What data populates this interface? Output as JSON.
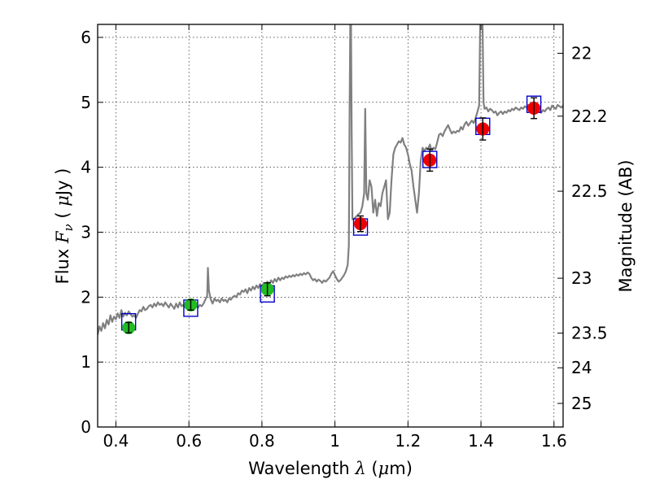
{
  "chart_data": {
    "type": "scatter",
    "xlabel_text": "Wavelength",
    "xlabel_symbol": "λ",
    "xlabel_unit_open": "(",
    "xlabel_unit_mu": "μ",
    "xlabel_unit_rest": "m)",
    "ylabel_text": "Flux",
    "ylabel_symbol": "F",
    "ylabel_subscript": "ν",
    "ylabel_unit_open": "(",
    "ylabel_unit_mu": "μ",
    "ylabel_unit_rest": "Jy )",
    "y2label": "Magnitude (AB)",
    "xlim": [
      0.35,
      1.625
    ],
    "ylim": [
      0,
      6.2
    ],
    "grid": true,
    "x_ticks": [
      0.4,
      0.6,
      0.8,
      1.0,
      1.2,
      1.4,
      1.6
    ],
    "x_tick_labels": [
      "0.4",
      "0.6",
      "0.8",
      "1",
      "1.2",
      "1.4",
      "1.6"
    ],
    "y_ticks": [
      0,
      1,
      2,
      3,
      4,
      5,
      6
    ],
    "y_tick_labels": [
      "0",
      "1",
      "2",
      "3",
      "4",
      "5",
      "6"
    ],
    "mag_ticks": [
      22,
      22.2,
      22.5,
      23,
      23.5,
      24,
      25
    ],
    "mag_tick_labels": [
      "22",
      "22.2",
      "22.5",
      "23",
      "23.5",
      "24",
      "25"
    ],
    "colors": {
      "spectrum": "#808080",
      "model_box": "#0000cc",
      "optical_points": "#22bb22",
      "nir_points": "#ee0000",
      "error_bar": "#000000"
    },
    "model_photometry": [
      {
        "x": 0.435,
        "y": 1.62
      },
      {
        "x": 0.605,
        "y": 1.83
      },
      {
        "x": 0.815,
        "y": 2.05
      },
      {
        "x": 1.07,
        "y": 3.08
      },
      {
        "x": 1.26,
        "y": 4.12
      },
      {
        "x": 1.405,
        "y": 4.63
      },
      {
        "x": 1.545,
        "y": 4.97
      }
    ],
    "observed_optical": [
      {
        "x": 0.435,
        "y": 1.53,
        "err": 0.08
      },
      {
        "x": 0.605,
        "y": 1.88,
        "err": 0.08
      },
      {
        "x": 0.815,
        "y": 2.12,
        "err": 0.1
      }
    ],
    "observed_nir": [
      {
        "x": 1.07,
        "y": 3.13,
        "err": 0.12
      },
      {
        "x": 1.26,
        "y": 4.11,
        "err": 0.17
      },
      {
        "x": 1.405,
        "y": 4.59,
        "err": 0.17
      },
      {
        "x": 1.545,
        "y": 4.91,
        "err": 0.16
      }
    ],
    "spectrum": [
      [
        0.35,
        1.42
      ],
      [
        0.355,
        1.55
      ],
      [
        0.36,
        1.48
      ],
      [
        0.365,
        1.6
      ],
      [
        0.37,
        1.52
      ],
      [
        0.375,
        1.65
      ],
      [
        0.38,
        1.58
      ],
      [
        0.385,
        1.72
      ],
      [
        0.39,
        1.62
      ],
      [
        0.395,
        1.7
      ],
      [
        0.4,
        1.66
      ],
      [
        0.405,
        1.75
      ],
      [
        0.41,
        1.68
      ],
      [
        0.415,
        1.8
      ],
      [
        0.42,
        1.7
      ],
      [
        0.425,
        1.76
      ],
      [
        0.43,
        1.72
      ],
      [
        0.435,
        1.78
      ],
      [
        0.44,
        1.74
      ],
      [
        0.445,
        1.7
      ],
      [
        0.45,
        1.72
      ],
      [
        0.455,
        1.68
      ],
      [
        0.46,
        1.74
      ],
      [
        0.465,
        1.8
      ],
      [
        0.47,
        1.78
      ],
      [
        0.475,
        1.85
      ],
      [
        0.48,
        1.8
      ],
      [
        0.485,
        1.82
      ],
      [
        0.49,
        1.86
      ],
      [
        0.495,
        1.88
      ],
      [
        0.5,
        1.84
      ],
      [
        0.505,
        1.9
      ],
      [
        0.51,
        1.86
      ],
      [
        0.515,
        1.92
      ],
      [
        0.52,
        1.88
      ],
      [
        0.525,
        1.9
      ],
      [
        0.53,
        1.86
      ],
      [
        0.535,
        1.92
      ],
      [
        0.54,
        1.88
      ],
      [
        0.545,
        1.84
      ],
      [
        0.55,
        1.9
      ],
      [
        0.555,
        1.86
      ],
      [
        0.56,
        1.82
      ],
      [
        0.565,
        1.9
      ],
      [
        0.57,
        1.84
      ],
      [
        0.575,
        1.92
      ],
      [
        0.58,
        1.86
      ],
      [
        0.585,
        1.88
      ],
      [
        0.59,
        1.84
      ],
      [
        0.595,
        1.9
      ],
      [
        0.6,
        1.86
      ],
      [
        0.605,
        1.88
      ],
      [
        0.61,
        1.84
      ],
      [
        0.615,
        1.9
      ],
      [
        0.62,
        1.86
      ],
      [
        0.625,
        1.84
      ],
      [
        0.63,
        1.88
      ],
      [
        0.635,
        1.86
      ],
      [
        0.64,
        1.9
      ],
      [
        0.645,
        1.96
      ],
      [
        0.65,
        2.02
      ],
      [
        0.652,
        2.45
      ],
      [
        0.655,
        2.1
      ],
      [
        0.66,
        1.96
      ],
      [
        0.665,
        1.9
      ],
      [
        0.67,
        1.98
      ],
      [
        0.675,
        1.94
      ],
      [
        0.68,
        1.96
      ],
      [
        0.685,
        1.92
      ],
      [
        0.69,
        1.98
      ],
      [
        0.695,
        1.94
      ],
      [
        0.7,
        1.96
      ],
      [
        0.705,
        1.92
      ],
      [
        0.71,
        1.98
      ],
      [
        0.715,
        1.96
      ],
      [
        0.72,
        2.0
      ],
      [
        0.725,
        2.02
      ],
      [
        0.73,
        2.0
      ],
      [
        0.735,
        2.06
      ],
      [
        0.74,
        2.04
      ],
      [
        0.745,
        2.1
      ],
      [
        0.75,
        2.08
      ],
      [
        0.755,
        2.12
      ],
      [
        0.76,
        2.06
      ],
      [
        0.765,
        2.14
      ],
      [
        0.77,
        2.1
      ],
      [
        0.775,
        2.16
      ],
      [
        0.78,
        2.12
      ],
      [
        0.785,
        2.18
      ],
      [
        0.79,
        2.14
      ],
      [
        0.795,
        2.2
      ],
      [
        0.8,
        2.16
      ],
      [
        0.805,
        2.22
      ],
      [
        0.81,
        2.18
      ],
      [
        0.815,
        2.24
      ],
      [
        0.82,
        2.2
      ],
      [
        0.825,
        2.26
      ],
      [
        0.83,
        2.22
      ],
      [
        0.835,
        2.28
      ],
      [
        0.84,
        2.24
      ],
      [
        0.845,
        2.3
      ],
      [
        0.85,
        2.26
      ],
      [
        0.855,
        2.3
      ],
      [
        0.86,
        2.28
      ],
      [
        0.865,
        2.32
      ],
      [
        0.87,
        2.3
      ],
      [
        0.875,
        2.33
      ],
      [
        0.88,
        2.31
      ],
      [
        0.885,
        2.34
      ],
      [
        0.89,
        2.32
      ],
      [
        0.895,
        2.35
      ],
      [
        0.9,
        2.33
      ],
      [
        0.905,
        2.36
      ],
      [
        0.91,
        2.34
      ],
      [
        0.915,
        2.37
      ],
      [
        0.92,
        2.35
      ],
      [
        0.925,
        2.38
      ],
      [
        0.93,
        2.36
      ],
      [
        0.935,
        2.3
      ],
      [
        0.94,
        2.26
      ],
      [
        0.945,
        2.28
      ],
      [
        0.95,
        2.24
      ],
      [
        0.955,
        2.27
      ],
      [
        0.96,
        2.25
      ],
      [
        0.965,
        2.22
      ],
      [
        0.97,
        2.26
      ],
      [
        0.975,
        2.24
      ],
      [
        0.98,
        2.27
      ],
      [
        0.985,
        2.3
      ],
      [
        0.99,
        2.36
      ],
      [
        0.995,
        2.4
      ],
      [
        1.0,
        2.34
      ],
      [
        1.005,
        2.28
      ],
      [
        1.01,
        2.24
      ],
      [
        1.015,
        2.26
      ],
      [
        1.02,
        2.3
      ],
      [
        1.025,
        2.34
      ],
      [
        1.03,
        2.4
      ],
      [
        1.035,
        2.5
      ],
      [
        1.038,
        2.8
      ],
      [
        1.04,
        4.8
      ],
      [
        1.042,
        6.3
      ],
      [
        1.044,
        6.3
      ],
      [
        1.046,
        4.5
      ],
      [
        1.048,
        3.2
      ],
      [
        1.05,
        3.2
      ],
      [
        1.055,
        3.22
      ],
      [
        1.06,
        3.25
      ],
      [
        1.065,
        3.28
      ],
      [
        1.07,
        3.3
      ],
      [
        1.075,
        3.4
      ],
      [
        1.08,
        3.6
      ],
      [
        1.083,
        4.9
      ],
      [
        1.086,
        3.6
      ],
      [
        1.09,
        3.5
      ],
      [
        1.095,
        3.8
      ],
      [
        1.1,
        3.7
      ],
      [
        1.105,
        3.3
      ],
      [
        1.11,
        3.5
      ],
      [
        1.115,
        3.25
      ],
      [
        1.12,
        3.45
      ],
      [
        1.125,
        3.4
      ],
      [
        1.13,
        3.6
      ],
      [
        1.135,
        3.7
      ],
      [
        1.14,
        3.8
      ],
      [
        1.145,
        3.2
      ],
      [
        1.15,
        3.3
      ],
      [
        1.155,
        3.8
      ],
      [
        1.16,
        4.2
      ],
      [
        1.165,
        4.3
      ],
      [
        1.17,
        4.35
      ],
      [
        1.175,
        4.4
      ],
      [
        1.18,
        4.38
      ],
      [
        1.185,
        4.45
      ],
      [
        1.19,
        4.35
      ],
      [
        1.195,
        4.3
      ],
      [
        1.2,
        4.2
      ],
      [
        1.205,
        4.05
      ],
      [
        1.21,
        3.95
      ],
      [
        1.215,
        3.7
      ],
      [
        1.22,
        3.5
      ],
      [
        1.225,
        3.3
      ],
      [
        1.23,
        3.6
      ],
      [
        1.235,
        4.1
      ],
      [
        1.24,
        4.3
      ],
      [
        1.245,
        4.25
      ],
      [
        1.25,
        4.3
      ],
      [
        1.255,
        4.28
      ],
      [
        1.26,
        4.35
      ],
      [
        1.265,
        4.25
      ],
      [
        1.27,
        4.3
      ],
      [
        1.275,
        4.28
      ],
      [
        1.28,
        4.38
      ],
      [
        1.285,
        4.5
      ],
      [
        1.29,
        4.52
      ],
      [
        1.295,
        4.48
      ],
      [
        1.3,
        4.55
      ],
      [
        1.305,
        4.6
      ],
      [
        1.31,
        4.65
      ],
      [
        1.315,
        4.58
      ],
      [
        1.32,
        4.52
      ],
      [
        1.325,
        4.55
      ],
      [
        1.33,
        4.53
      ],
      [
        1.335,
        4.56
      ],
      [
        1.34,
        4.55
      ],
      [
        1.345,
        4.62
      ],
      [
        1.35,
        4.58
      ],
      [
        1.355,
        4.66
      ],
      [
        1.36,
        4.7
      ],
      [
        1.365,
        4.64
      ],
      [
        1.37,
        4.68
      ],
      [
        1.375,
        4.72
      ],
      [
        1.38,
        4.68
      ],
      [
        1.385,
        4.75
      ],
      [
        1.39,
        4.85
      ],
      [
        1.395,
        4.95
      ],
      [
        1.398,
        6.3
      ],
      [
        1.404,
        6.3
      ],
      [
        1.407,
        5.0
      ],
      [
        1.41,
        4.9
      ],
      [
        1.415,
        4.92
      ],
      [
        1.42,
        4.86
      ],
      [
        1.425,
        4.9
      ],
      [
        1.43,
        4.88
      ],
      [
        1.435,
        4.84
      ],
      [
        1.44,
        4.86
      ],
      [
        1.445,
        4.8
      ],
      [
        1.45,
        4.84
      ],
      [
        1.455,
        4.86
      ],
      [
        1.46,
        4.82
      ],
      [
        1.465,
        4.86
      ],
      [
        1.47,
        4.84
      ],
      [
        1.475,
        4.88
      ],
      [
        1.48,
        4.86
      ],
      [
        1.485,
        4.9
      ],
      [
        1.49,
        4.88
      ],
      [
        1.495,
        4.92
      ],
      [
        1.5,
        4.9
      ],
      [
        1.505,
        4.88
      ],
      [
        1.51,
        4.92
      ],
      [
        1.515,
        4.9
      ],
      [
        1.52,
        4.94
      ],
      [
        1.525,
        4.92
      ],
      [
        1.53,
        4.96
      ],
      [
        1.535,
        4.94
      ],
      [
        1.54,
        4.92
      ],
      [
        1.545,
        4.96
      ],
      [
        1.55,
        4.94
      ],
      [
        1.555,
        4.9
      ],
      [
        1.56,
        4.86
      ],
      [
        1.565,
        4.84
      ],
      [
        1.57,
        4.88
      ],
      [
        1.575,
        4.86
      ],
      [
        1.58,
        4.9
      ],
      [
        1.585,
        4.92
      ],
      [
        1.59,
        4.88
      ],
      [
        1.595,
        4.95
      ],
      [
        1.6,
        4.92
      ],
      [
        1.605,
        4.9
      ],
      [
        1.61,
        4.96
      ],
      [
        1.615,
        4.94
      ],
      [
        1.62,
        4.92
      ],
      [
        1.625,
        4.95
      ]
    ]
  }
}
